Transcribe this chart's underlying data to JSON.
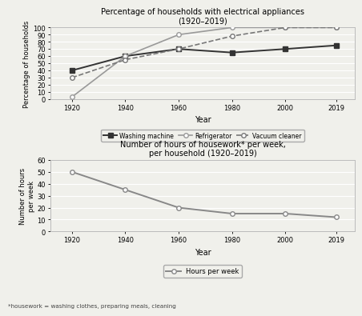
{
  "years": [
    1920,
    1940,
    1960,
    1980,
    2000,
    2019
  ],
  "washing_machine": [
    40,
    60,
    70,
    65,
    70,
    75
  ],
  "refrigerator": [
    3,
    60,
    90,
    100,
    100,
    100
  ],
  "vacuum_cleaner": [
    30,
    55,
    70,
    88,
    100,
    100
  ],
  "hours_per_week": [
    50,
    35,
    20,
    15,
    15,
    12
  ],
  "title1": "Percentage of households with electrical appliances\n(1920–2019)",
  "ylabel1": "Percentage of households",
  "xlabel1": "Year",
  "title2": "Number of hours of housework* per week,\nper household (1920–2019)",
  "ylabel2": "Number of hours\nper week",
  "xlabel2": "Year",
  "footnote": "*housework = washing clothes, preparing meals, cleaning",
  "legend1_labels": [
    "Washing machine",
    "Refrigerator",
    "Vacuum cleaner"
  ],
  "legend2_label": "Hours per week",
  "washing_color": "#333333",
  "refrigerator_color": "#999999",
  "vacuum_color": "#777777",
  "hours_color": "#888888",
  "ylim1": [
    0,
    100
  ],
  "yticks1": [
    0,
    10,
    20,
    30,
    40,
    50,
    60,
    70,
    80,
    90,
    100
  ],
  "ylim2": [
    0,
    60
  ],
  "yticks2": [
    0,
    10,
    20,
    30,
    40,
    50,
    60
  ],
  "bg_color": "#f0f0eb"
}
